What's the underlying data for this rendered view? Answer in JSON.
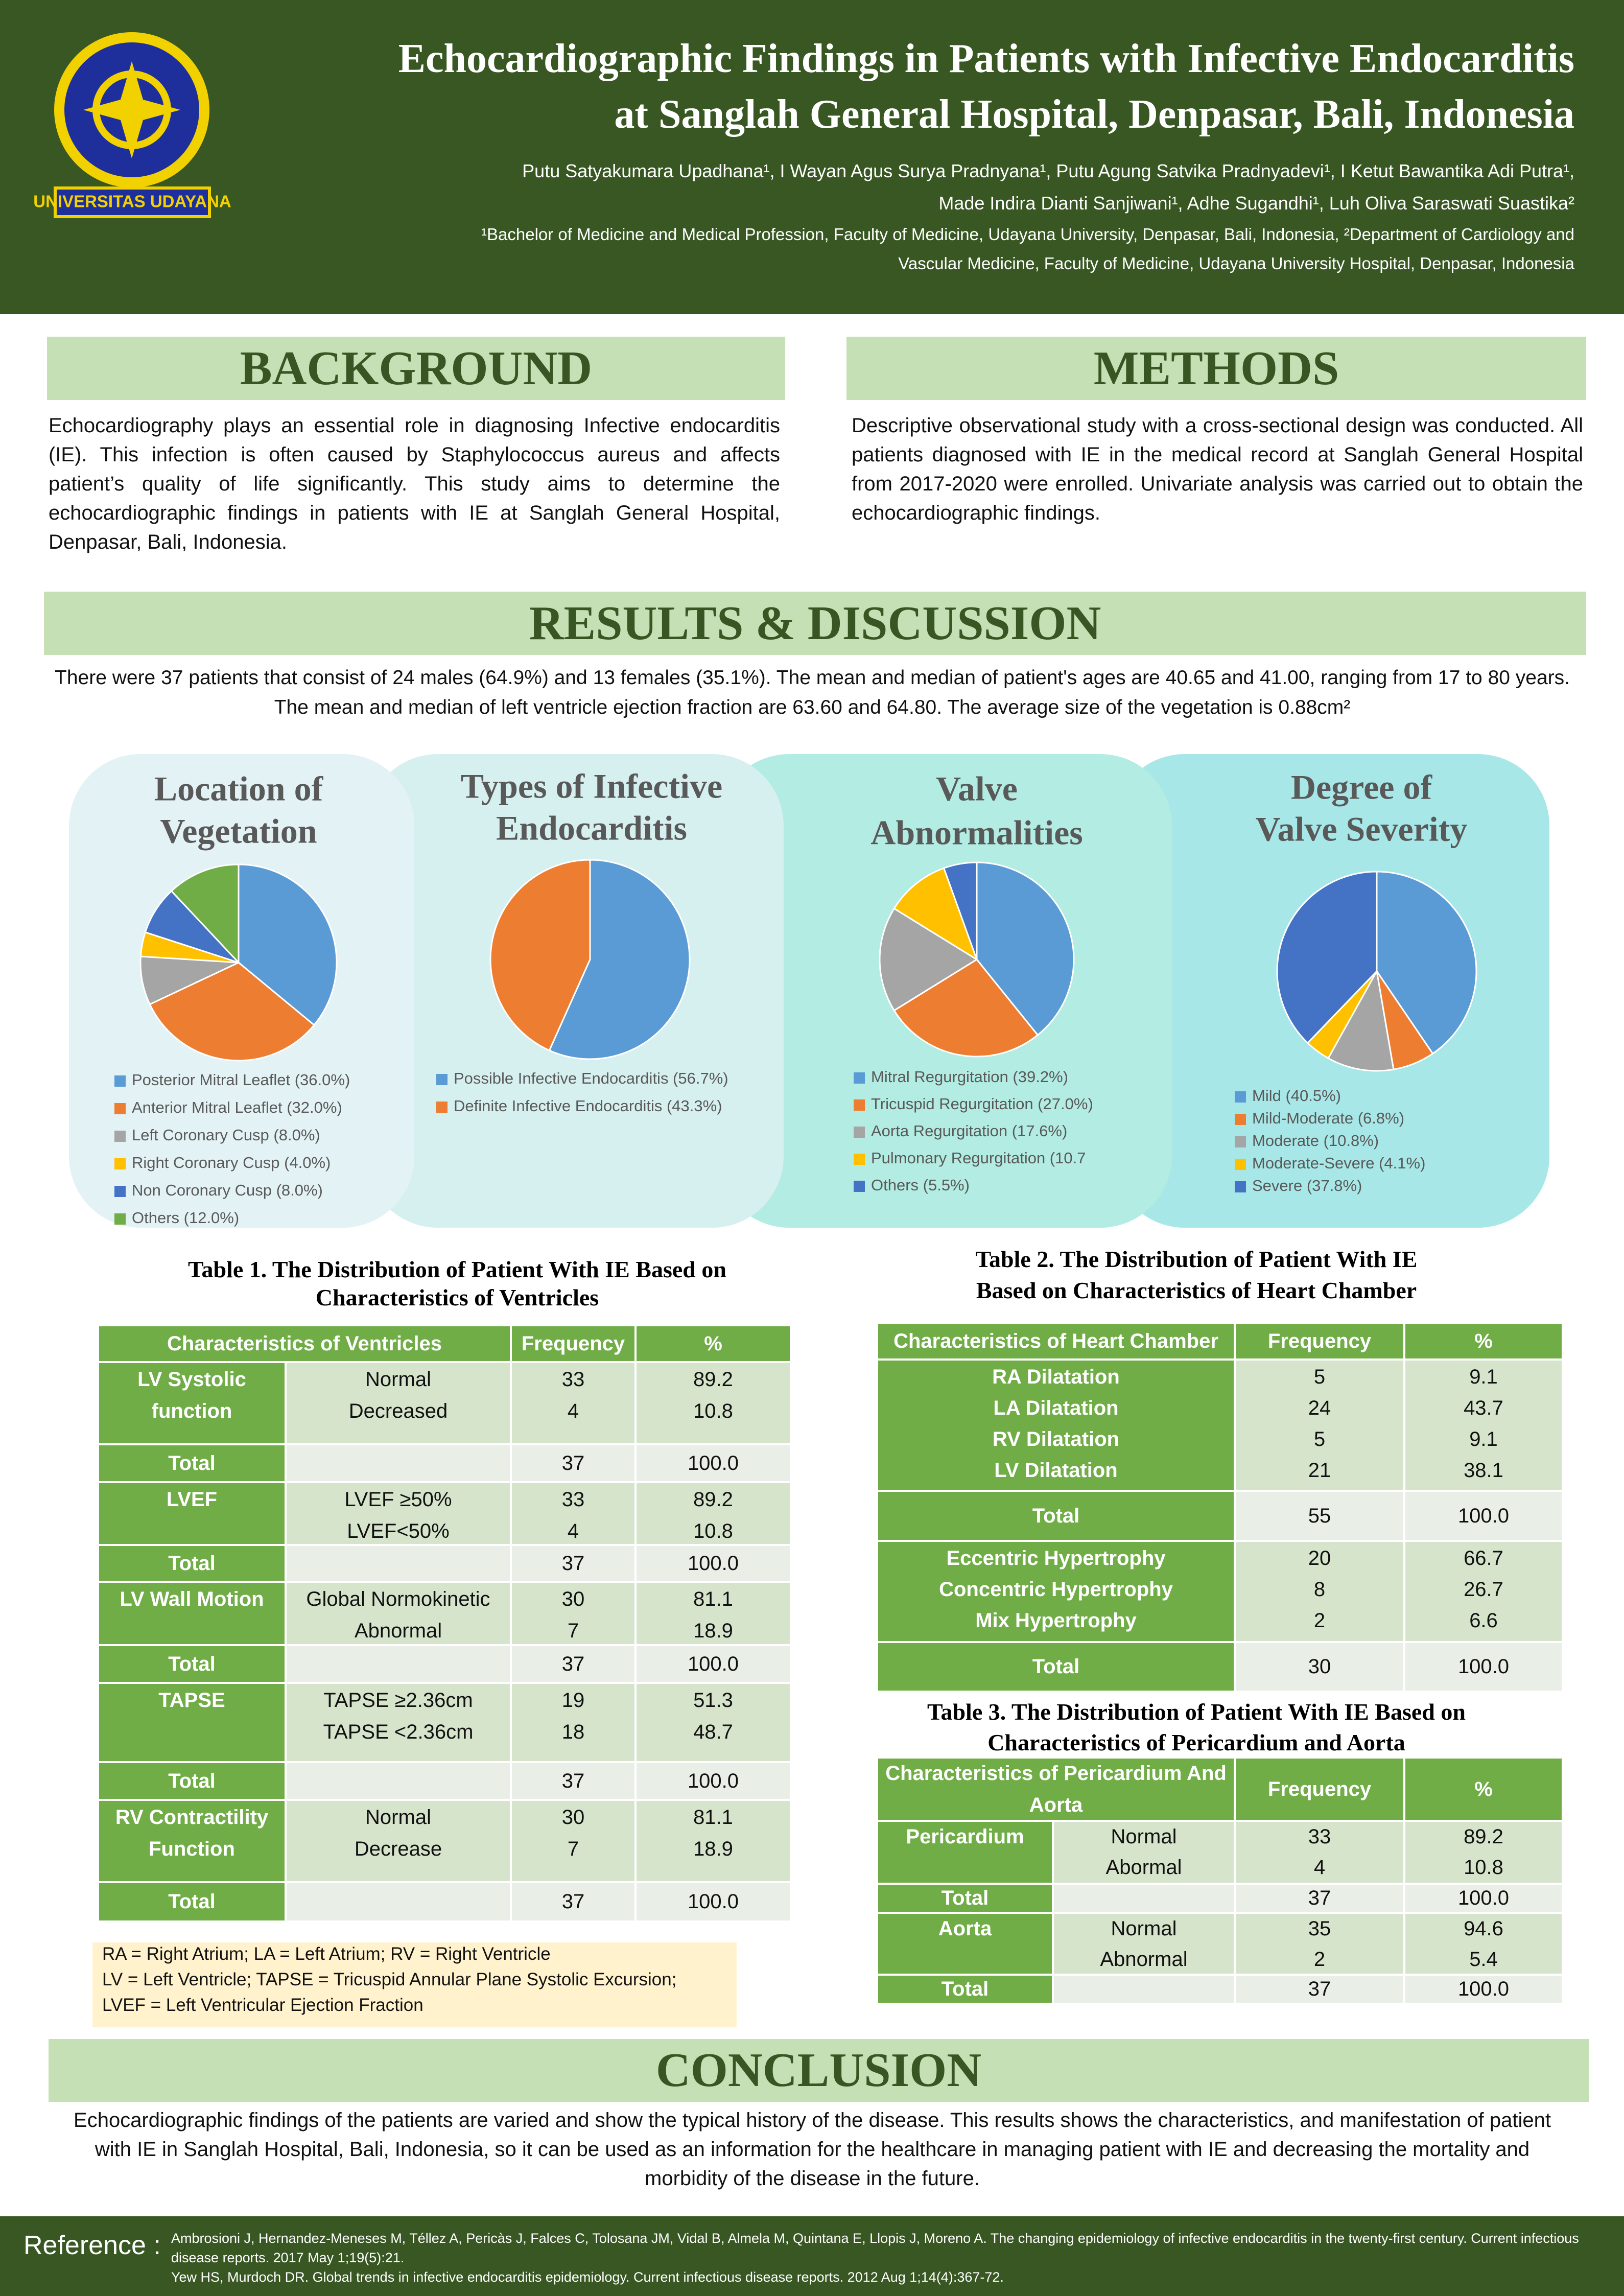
{
  "header": {
    "logo_text": "UNIVERSITAS UDAYANA",
    "title": [
      "Echocardiographic Findings in Patients with Infective Endocarditis",
      "at Sanglah General Hospital, Denpasar, Bali, Indonesia"
    ],
    "authors": [
      "Putu Satyakumara Upadhana¹, I Wayan Agus Surya Pradnyana¹, Putu Agung Satvika Pradnyadevi¹, I Ketut Bawantika Adi Putra¹,",
      "Made Indira Dianti Sanjiwani¹, Adhe Sugandhi¹, Luh Oliva Saraswati Suastika²"
    ],
    "affiliations": [
      "¹Bachelor of Medicine and Medical Profession, Faculty of Medicine, Udayana University, Denpasar, Bali, Indonesia, ²Department of Cardiology and",
      "Vascular Medicine, Faculty of Medicine, Udayana University Hospital, Denpasar, Indonesia"
    ]
  },
  "background": {
    "heading": "BACKGROUND",
    "text": "Echocardiography plays an essential role in diagnosing Infective endocarditis (IE). This infection is often caused by Staphylococcus aureus and affects patient’s quality of life significantly.  This study aims to determine the echocardiographic findings in patients with IE at Sanglah General Hospital, Denpasar, Bali, Indonesia."
  },
  "methods": {
    "heading": "METHODS",
    "text": "Descriptive observational study with a cross-sectional design was conducted. All patients diagnosed with IE in the medical record at Sanglah General Hospital from 2017-2020 were enrolled. Univariate analysis was carried out to obtain the echocardiographic findings."
  },
  "results": {
    "heading": "RESULTS & DISCUSSION",
    "text": "There were 37 patients that consist of 24 males (64.9%) and 13 females (35.1%). The mean and median of patient's ages are 40.65 and 41.00, ranging from 17 to 80 years. The mean and median of left ventricle ejection fraction are 63.60 and 64.80. The average size of the vegetation is 0.88cm²"
  },
  "chart_data": [
    {
      "type": "pie",
      "title": [
        "Location of",
        "Vegetation"
      ],
      "categories": [
        "Posterior Mitral Leaflet (36.0%)",
        "Anterior Mitral Leaflet (32.0%)",
        "Left Coronary Cusp (8.0%)",
        "Right Coronary Cusp (4.0%)",
        "Non Coronary Cusp (8.0%)",
        "Others (12.0%)"
      ],
      "values": [
        36.0,
        32.0,
        8.0,
        4.0,
        8.0,
        12.0
      ],
      "colors": [
        "#5b9bd5",
        "#ed7d31",
        "#a5a5a5",
        "#ffc000",
        "#4472c4",
        "#70ad47"
      ]
    },
    {
      "type": "pie",
      "title": [
        "Types of Infective",
        "Endocarditis"
      ],
      "categories": [
        "Possible Infective Endocarditis  (56.7%)",
        "Definite Infective Endocarditis (43.3%)"
      ],
      "values": [
        56.7,
        43.3
      ],
      "colors": [
        "#5b9bd5",
        "#ed7d31"
      ]
    },
    {
      "type": "pie",
      "title": [
        "Valve",
        "Abnormalities"
      ],
      "categories": [
        "Mitral Regurgitation (39.2%)",
        "Tricuspid Regurgitation (27.0%)",
        "Aorta Regurgitation (17.6%)",
        "Pulmonary Regurgitation (10.7",
        "Others (5.5%)"
      ],
      "values": [
        39.2,
        27.0,
        17.6,
        10.7,
        5.5
      ],
      "colors": [
        "#5b9bd5",
        "#ed7d31",
        "#a5a5a5",
        "#ffc000",
        "#4472c4"
      ]
    },
    {
      "type": "pie",
      "title": [
        "Degree of",
        "Valve Severity"
      ],
      "categories": [
        "Mild (40.5%)",
        "Mild-Moderate (6.8%)",
        "Moderate (10.8%)",
        "Moderate-Severe (4.1%)",
        "Severe (37.8%)"
      ],
      "values": [
        40.5,
        6.8,
        10.8,
        4.1,
        37.8
      ],
      "colors": [
        "#5b9bd5",
        "#ed7d31",
        "#a5a5a5",
        "#ffc000",
        "#4472c4"
      ]
    }
  ],
  "table1": {
    "title": [
      "Table 1. The Distribution of Patient With IE Based on",
      "Characteristics of Ventricles"
    ],
    "header": [
      "Characteristics of Ventricles",
      "Frequency",
      "%"
    ],
    "rows": [
      {
        "label": "LV Systolic function",
        "items": [
          [
            "Normal",
            "33",
            "89.2"
          ],
          [
            "Decreased",
            "4",
            "10.8"
          ]
        ]
      },
      {
        "label": "Total",
        "frequency": "37",
        "percent": "100.0"
      },
      {
        "label": "LVEF",
        "items": [
          [
            "LVEF ≥50%",
            "33",
            "89.2"
          ],
          [
            "LVEF<50%",
            "4",
            "10.8"
          ]
        ]
      },
      {
        "label": "Total",
        "frequency": "37",
        "percent": "100.0"
      },
      {
        "label": "LV Wall Motion",
        "items": [
          [
            "Global Normokinetic",
            "30",
            "81.1"
          ],
          [
            "Abnormal",
            "7",
            "18.9"
          ]
        ]
      },
      {
        "label": "Total",
        "frequency": "37",
        "percent": "100.0"
      },
      {
        "label": "TAPSE",
        "items": [
          [
            "TAPSE ≥2.36cm",
            "19",
            "51.3"
          ],
          [
            "TAPSE <2.36cm",
            "18",
            "48.7"
          ]
        ]
      },
      {
        "label": "Total",
        "frequency": "37",
        "percent": "100.0"
      },
      {
        "label": "RV Contractility Function",
        "items": [
          [
            "Normal",
            "30",
            "81.1"
          ],
          [
            "Decrease",
            "7",
            "18.9"
          ]
        ]
      },
      {
        "label": "Total",
        "frequency": "37",
        "percent": "100.0"
      }
    ]
  },
  "note": [
    "RA = Right Atrium; LA = Left Atrium; RV = Right Ventricle",
    "LV = Left Ventricle; TAPSE =  Tricuspid Annular Plane Systolic Excursion;",
    "LVEF = Left Ventricular Ejection Fraction"
  ],
  "table2": {
    "title": [
      "Table 2. The Distribution of Patient With IE",
      "Based on Characteristics of Heart Chamber"
    ],
    "header": [
      "Characteristics of Heart Chamber",
      "Frequency",
      "%"
    ],
    "rows": [
      {
        "items": [
          [
            "RA Dilatation",
            "5",
            "9.1"
          ],
          [
            "LA Dilatation",
            "24",
            "43.7"
          ],
          [
            "RV Dilatation",
            "5",
            "9.1"
          ],
          [
            "LV Dilatation",
            "21",
            "38.1"
          ]
        ]
      },
      {
        "label": "Total",
        "frequency": "55",
        "percent": "100.0"
      },
      {
        "items": [
          [
            "Eccentric Hypertrophy",
            "20",
            "66.7"
          ],
          [
            "Concentric Hypertrophy",
            "8",
            "26.7"
          ],
          [
            "Mix Hypertrophy",
            "2",
            "6.6"
          ]
        ]
      },
      {
        "label": "Total",
        "frequency": "30",
        "percent": "100.0"
      }
    ]
  },
  "table3": {
    "title": [
      "Table 3. The Distribution of Patient With IE Based on",
      "Characteristics of Pericardium and Aorta"
    ],
    "header": [
      "Characteristics of Pericardium And Aorta",
      "Frequency",
      "%"
    ],
    "rows": [
      {
        "label": "Pericardium",
        "items": [
          [
            "Normal",
            "33",
            "89.2"
          ],
          [
            "Abormal",
            "4",
            "10.8"
          ]
        ]
      },
      {
        "label": "Total",
        "frequency": "37",
        "percent": "100.0"
      },
      {
        "label": "Aorta",
        "items": [
          [
            "Normal",
            "35",
            "94.6"
          ],
          [
            "Abnormal",
            "2",
            "5.4"
          ]
        ]
      },
      {
        "label": "Total",
        "frequency": "37",
        "percent": "100.0"
      }
    ]
  },
  "conclusion": {
    "heading": "CONCLUSION",
    "text": "Echocardiographic findings of the patients are varied and show the typical history of the disease. This results shows the characteristics, and manifestation of patient with IE in Sanglah Hospital, Bali, Indonesia, so it can be used as an information for the healthcare in managing  patient with IE and decreasing the mortality and morbidity of the disease in the future."
  },
  "reference": {
    "label": "Reference :",
    "items": [
      "Ambrosioni J, Hernandez-Meneses M, Téllez A, Pericàs J, Falces C, Tolosana JM, Vidal B, Almela M, Quintana E, Llopis J, Moreno A. The changing epidemiology of infective endocarditis in the twenty-first century. Current infectious disease reports. 2017 May 1;19(5):21.",
      "Yew HS, Murdoch DR. Global trends in infective endocarditis epidemiology. Current infectious disease reports. 2012 Aug 1;14(4):367-72."
    ]
  }
}
